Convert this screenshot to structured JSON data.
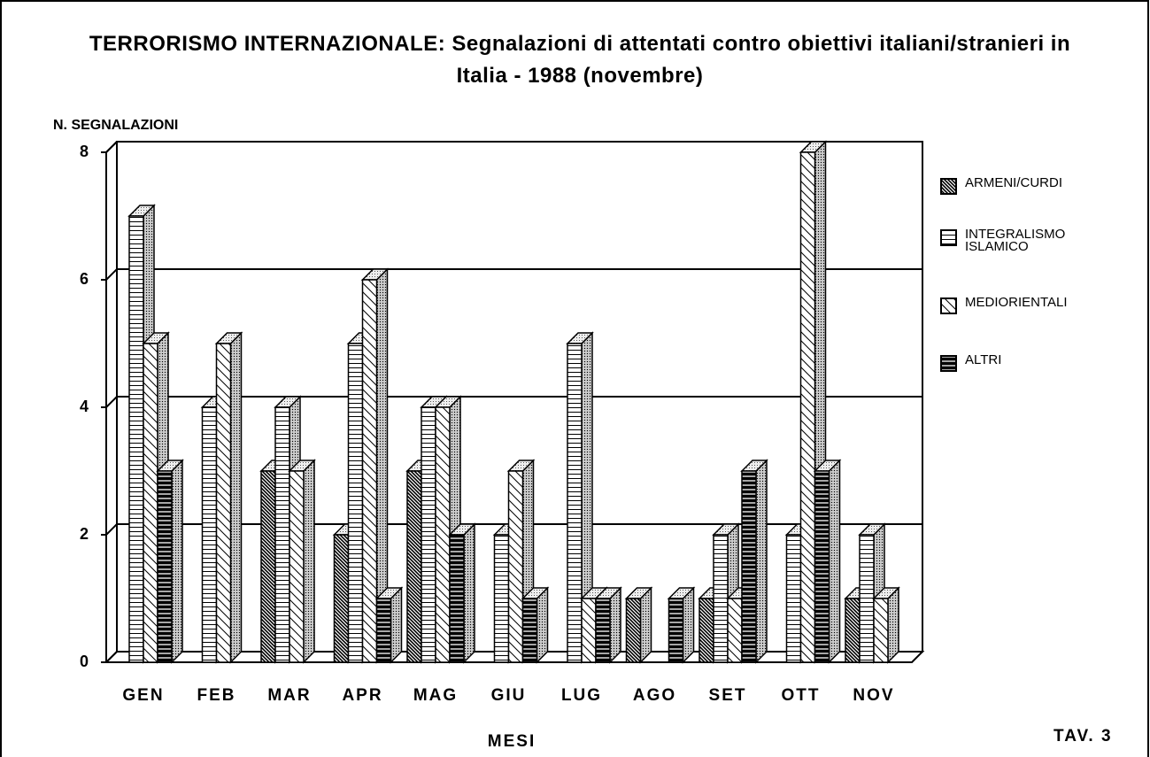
{
  "chart_data": {
    "type": "bar3d",
    "title": "TERRORISMO INTERNAZIONALE: Segnalazioni di attentati contro obiettivi italiani/stranieri in Italia - 1988 (novembre)",
    "y_label": "N. SEGNALAZIONI",
    "x_label": "MESI",
    "annotation": "TAV. 3",
    "categories": [
      "GEN",
      "FEB",
      "MAR",
      "APR",
      "MAG",
      "GIU",
      "LUG",
      "AGO",
      "SET",
      "OTT",
      "NOV"
    ],
    "series": [
      {
        "name": "ARMENI/CURDI",
        "color": "dense-diagonal",
        "values": [
          0,
          0,
          3,
          2,
          3,
          0,
          0,
          1,
          1,
          0,
          1
        ]
      },
      {
        "name": "INTEGRALISMO ISLAMICO",
        "color": "horizontal-lines",
        "values": [
          7,
          4,
          4,
          5,
          4,
          2,
          5,
          0,
          2,
          2,
          2
        ]
      },
      {
        "name": "MEDIORIENTALI",
        "color": "sparse-diagonal",
        "values": [
          5,
          5,
          3,
          6,
          4,
          3,
          1,
          0,
          1,
          8,
          1
        ]
      },
      {
        "name": "ALTRI",
        "color": "black-horizontal",
        "values": [
          3,
          0,
          0,
          1,
          2,
          1,
          1,
          1,
          3,
          3,
          0
        ]
      }
    ],
    "ylim": [
      0,
      8
    ],
    "yticks": [
      0,
      2,
      4,
      6,
      8
    ],
    "grid": true
  }
}
